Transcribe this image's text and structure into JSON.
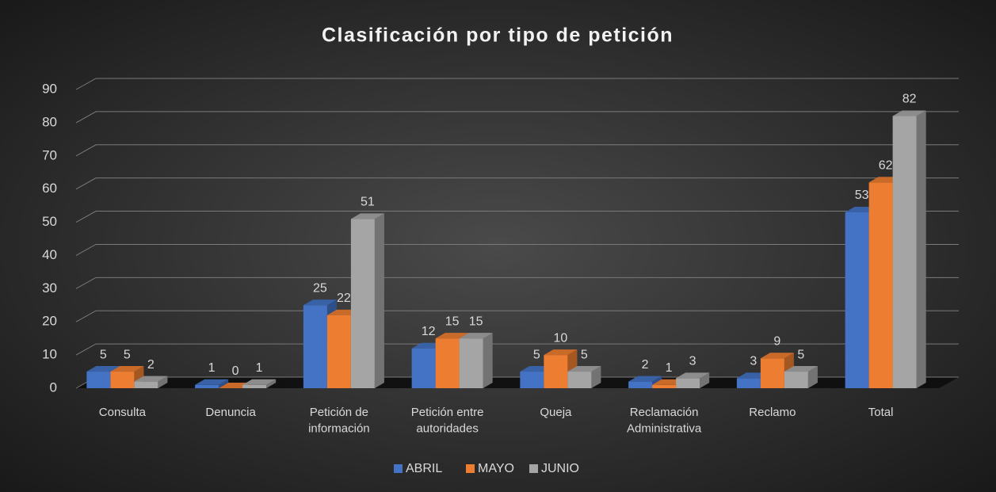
{
  "chart_data": {
    "type": "bar3d",
    "title": "Clasificación por tipo de petición",
    "categories": [
      "Consulta",
      "Denuncia",
      "Petición de\ninformación",
      "Petición entre\nautoridades",
      "Queja",
      "Reclamación\nAdministrativa",
      "Reclamo",
      "Total"
    ],
    "series": [
      {
        "name": "ABRIL",
        "color": "#4472c4",
        "values": [
          5,
          1,
          25,
          12,
          5,
          2,
          3,
          53
        ]
      },
      {
        "name": "MAYO",
        "color": "#ed7d31",
        "values": [
          5,
          0,
          22,
          15,
          10,
          1,
          9,
          62
        ]
      },
      {
        "name": "JUNIO",
        "color": "#a5a5a5",
        "values": [
          2,
          1,
          51,
          15,
          5,
          3,
          5,
          82
        ]
      }
    ],
    "ylim": [
      0,
      90
    ],
    "yticks": [
      0,
      10,
      20,
      30,
      40,
      50,
      60,
      70,
      80,
      90
    ],
    "grid": true,
    "legend": "bottom"
  }
}
